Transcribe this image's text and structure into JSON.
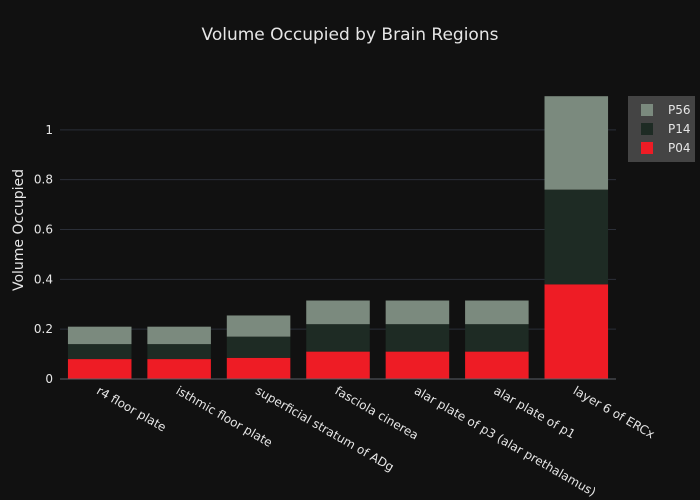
{
  "chart_data": {
    "type": "bar",
    "stacked": true,
    "title": "Volume Occupied by Brain Regions",
    "xlabel": "",
    "ylabel": "Volume Occupied",
    "ylim": [
      0,
      1.2
    ],
    "yticks": [
      "0",
      "0.2",
      "0.4",
      "0.6",
      "0.8",
      "1"
    ],
    "ytick_values": [
      0,
      0.2,
      0.4,
      0.6,
      0.8,
      1
    ],
    "categories": [
      "r4 floor plate",
      "isthmic floor plate",
      "superficial stratum of ADg",
      "fasciola cinerea",
      "alar plate of p3 (alar prethalamus)",
      "alar plate of p1",
      "layer 6 of ERCx"
    ],
    "series": [
      {
        "name": "P04",
        "color": "#ee1c25",
        "values": [
          0.08,
          0.08,
          0.085,
          0.11,
          0.11,
          0.11,
          0.38
        ]
      },
      {
        "name": "P14",
        "color": "#1e2b24",
        "values": [
          0.06,
          0.06,
          0.085,
          0.11,
          0.11,
          0.11,
          0.38
        ]
      },
      {
        "name": "P56",
        "color": "#7b8a7e",
        "values": [
          0.07,
          0.07,
          0.085,
          0.095,
          0.095,
          0.095,
          0.375
        ]
      }
    ],
    "legend_order": [
      "P56",
      "P14",
      "P04"
    ],
    "legend_position": "top-right",
    "grid": true
  }
}
